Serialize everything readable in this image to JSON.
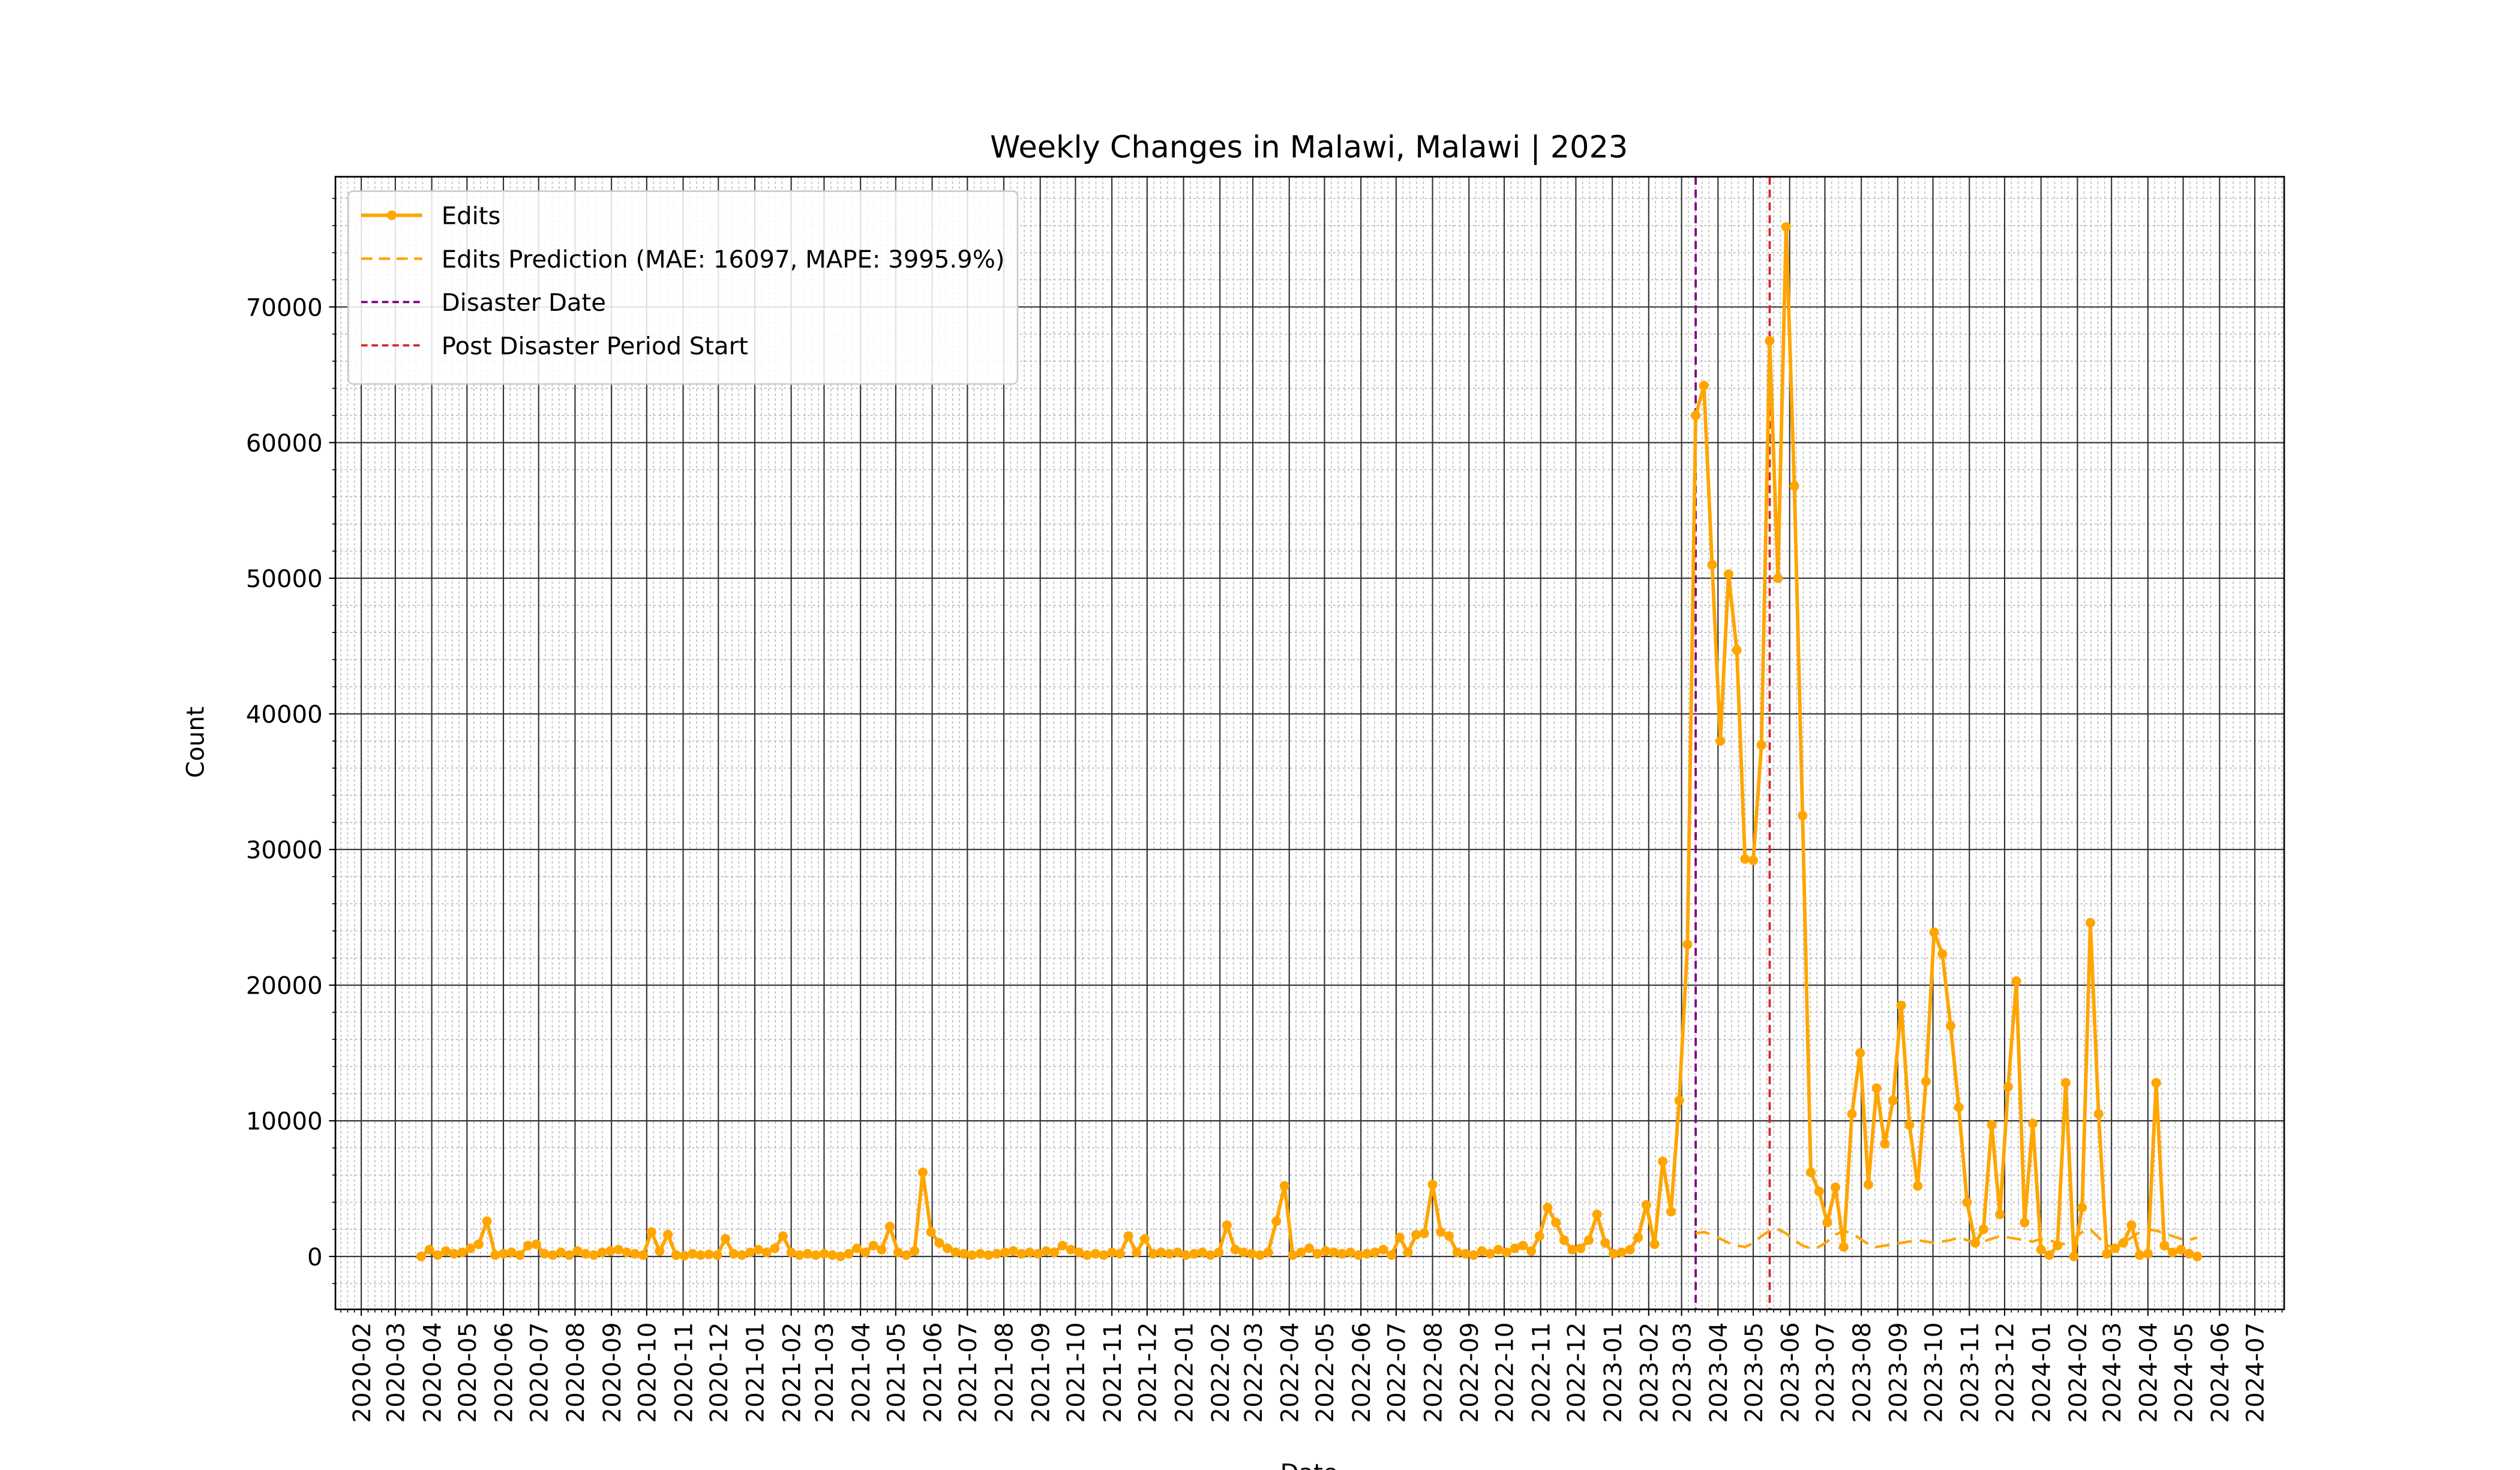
{
  "chart_data": {
    "type": "line",
    "title": "Weekly Changes in Malawi, Malawi | 2023",
    "xlabel": "Date",
    "ylabel": "Count",
    "x": [
      "2020-03-23",
      "2020-03-30",
      "2020-04-06",
      "2020-04-13",
      "2020-04-20",
      "2020-04-27",
      "2020-05-04",
      "2020-05-11",
      "2020-05-18",
      "2020-05-25",
      "2020-06-01",
      "2020-06-08",
      "2020-06-15",
      "2020-06-22",
      "2020-06-29",
      "2020-07-06",
      "2020-07-13",
      "2020-07-20",
      "2020-07-27",
      "2020-08-03",
      "2020-08-10",
      "2020-08-17",
      "2020-08-24",
      "2020-08-31",
      "2020-09-07",
      "2020-09-14",
      "2020-09-21",
      "2020-09-28",
      "2020-10-05",
      "2020-10-12",
      "2020-10-19",
      "2020-10-26",
      "2020-11-02",
      "2020-11-09",
      "2020-11-16",
      "2020-11-23",
      "2020-11-30",
      "2020-12-07",
      "2020-12-14",
      "2020-12-21",
      "2020-12-28",
      "2021-01-04",
      "2021-01-11",
      "2021-01-18",
      "2021-01-25",
      "2021-02-01",
      "2021-02-08",
      "2021-02-15",
      "2021-02-22",
      "2021-03-01",
      "2021-03-08",
      "2021-03-15",
      "2021-03-22",
      "2021-03-29",
      "2021-04-05",
      "2021-04-12",
      "2021-04-19",
      "2021-04-26",
      "2021-05-03",
      "2021-05-10",
      "2021-05-17",
      "2021-05-24",
      "2021-05-31",
      "2021-06-07",
      "2021-06-14",
      "2021-06-21",
      "2021-06-28",
      "2021-07-05",
      "2021-07-12",
      "2021-07-19",
      "2021-07-26",
      "2021-08-02",
      "2021-08-09",
      "2021-08-16",
      "2021-08-23",
      "2021-08-30",
      "2021-09-06",
      "2021-09-13",
      "2021-09-20",
      "2021-09-27",
      "2021-10-04",
      "2021-10-11",
      "2021-10-18",
      "2021-10-25",
      "2021-11-01",
      "2021-11-08",
      "2021-11-15",
      "2021-11-22",
      "2021-11-29",
      "2021-12-06",
      "2021-12-13",
      "2021-12-20",
      "2021-12-27",
      "2022-01-03",
      "2022-01-10",
      "2022-01-17",
      "2022-01-24",
      "2022-01-31",
      "2022-02-07",
      "2022-02-14",
      "2022-02-21",
      "2022-02-28",
      "2022-03-07",
      "2022-03-14",
      "2022-03-21",
      "2022-03-28",
      "2022-04-04",
      "2022-04-11",
      "2022-04-18",
      "2022-04-25",
      "2022-05-02",
      "2022-05-09",
      "2022-05-16",
      "2022-05-23",
      "2022-05-30",
      "2022-06-06",
      "2022-06-13",
      "2022-06-20",
      "2022-06-27",
      "2022-07-04",
      "2022-07-11",
      "2022-07-18",
      "2022-07-25",
      "2022-08-01",
      "2022-08-08",
      "2022-08-15",
      "2022-08-22",
      "2022-08-29",
      "2022-09-05",
      "2022-09-12",
      "2022-09-19",
      "2022-09-26",
      "2022-10-03",
      "2022-10-10",
      "2022-10-17",
      "2022-10-24",
      "2022-10-31",
      "2022-11-07",
      "2022-11-14",
      "2022-11-21",
      "2022-11-28",
      "2022-12-05",
      "2022-12-12",
      "2022-12-19",
      "2022-12-26",
      "2023-01-02",
      "2023-01-09",
      "2023-01-16",
      "2023-01-23",
      "2023-01-30",
      "2023-02-06",
      "2023-02-13",
      "2023-02-20",
      "2023-02-27",
      "2023-03-06",
      "2023-03-13",
      "2023-03-20",
      "2023-03-27",
      "2023-04-03",
      "2023-04-10",
      "2023-04-17",
      "2023-04-24",
      "2023-05-01",
      "2023-05-08",
      "2023-05-15",
      "2023-05-22",
      "2023-05-29",
      "2023-06-05",
      "2023-06-12",
      "2023-06-19",
      "2023-06-26",
      "2023-07-03",
      "2023-07-10",
      "2023-07-17",
      "2023-07-24",
      "2023-07-31",
      "2023-08-07",
      "2023-08-14",
      "2023-08-21",
      "2023-08-28",
      "2023-09-04",
      "2023-09-11",
      "2023-09-18",
      "2023-09-25",
      "2023-10-02",
      "2023-10-09",
      "2023-10-16",
      "2023-10-23",
      "2023-10-30",
      "2023-11-06",
      "2023-11-13",
      "2023-11-20",
      "2023-11-27",
      "2023-12-04",
      "2023-12-11",
      "2023-12-18",
      "2023-12-25",
      "2024-01-01",
      "2024-01-08",
      "2024-01-15",
      "2024-01-22",
      "2024-01-29",
      "2024-02-05",
      "2024-02-12",
      "2024-02-19",
      "2024-02-26",
      "2024-03-04",
      "2024-03-11",
      "2024-03-18",
      "2024-03-25",
      "2024-04-01",
      "2024-04-08",
      "2024-04-15",
      "2024-04-22",
      "2024-04-29",
      "2024-05-06",
      "2024-05-13"
    ],
    "series": [
      {
        "name": "Edits",
        "color": "#ffa500",
        "style": "solid",
        "marker": true,
        "values": [
          0,
          500,
          100,
          400,
          200,
          300,
          600,
          900,
          2600,
          100,
          200,
          300,
          100,
          800,
          900,
          200,
          100,
          300,
          100,
          400,
          200,
          100,
          300,
          400,
          500,
          300,
          200,
          100,
          1800,
          400,
          1600,
          100,
          50,
          200,
          100,
          150,
          100,
          1300,
          200,
          100,
          300,
          500,
          300,
          600,
          1500,
          300,
          100,
          200,
          100,
          200,
          100,
          0,
          200,
          600,
          300,
          800,
          500,
          2200,
          300,
          100,
          400,
          6200,
          1800,
          1000,
          600,
          300,
          200,
          100,
          200,
          100,
          200,
          300,
          400,
          200,
          300,
          200,
          400,
          300,
          800,
          500,
          300,
          100,
          200,
          100,
          300,
          200,
          1500,
          300,
          1300,
          200,
          300,
          200,
          300,
          100,
          200,
          300,
          100,
          300,
          2300,
          500,
          300,
          200,
          100,
          300,
          2600,
          5200,
          100,
          300,
          600,
          200,
          400,
          300,
          200,
          300,
          100,
          200,
          300,
          500,
          100,
          1400,
          300,
          1600,
          1700,
          5300,
          1800,
          1500,
          300,
          200,
          100,
          400,
          200,
          500,
          300,
          600,
          800,
          400,
          1500,
          3600,
          2500,
          1200,
          500,
          600,
          1200,
          3100,
          1000,
          200,
          300,
          500,
          1400,
          3800,
          900,
          7000,
          3300,
          11500,
          23000,
          62000,
          64200,
          51000,
          38000,
          50300,
          44700,
          29300,
          29200,
          37700,
          67500,
          50000,
          75900,
          56800,
          32500,
          6200,
          4800,
          2500,
          5100,
          700,
          10500,
          15000,
          5300,
          12400,
          8300,
          11500,
          18500,
          9700,
          5200,
          12900,
          23900,
          22300,
          17000,
          11000,
          4000,
          1000,
          2000,
          9700,
          3100,
          12500,
          20300,
          2500,
          9800,
          500,
          100,
          800,
          12800,
          0,
          3600,
          24600,
          10500,
          200,
          600,
          1000,
          2300,
          100,
          200,
          12800,
          800,
          300,
          500,
          200,
          0
        ]
      },
      {
        "name": "Edits Prediction (MAE: 16097, MAPE: 3995.9%)",
        "color": "#ffa500",
        "style": "dashed",
        "marker": false,
        "values": [
          null,
          null,
          null,
          null,
          null,
          null,
          null,
          null,
          null,
          null,
          null,
          null,
          null,
          null,
          null,
          null,
          null,
          null,
          null,
          null,
          null,
          null,
          null,
          null,
          null,
          null,
          null,
          null,
          null,
          null,
          null,
          null,
          null,
          null,
          null,
          null,
          null,
          null,
          null,
          null,
          null,
          null,
          null,
          null,
          null,
          null,
          null,
          null,
          null,
          null,
          null,
          null,
          null,
          null,
          null,
          null,
          null,
          null,
          null,
          null,
          null,
          null,
          null,
          null,
          null,
          null,
          null,
          null,
          null,
          null,
          null,
          null,
          null,
          null,
          null,
          null,
          null,
          null,
          null,
          null,
          null,
          null,
          null,
          null,
          null,
          null,
          null,
          null,
          null,
          null,
          null,
          null,
          null,
          null,
          null,
          null,
          null,
          null,
          null,
          null,
          null,
          null,
          null,
          null,
          null,
          null,
          null,
          null,
          null,
          null,
          null,
          null,
          null,
          null,
          null,
          null,
          null,
          null,
          null,
          null,
          null,
          null,
          null,
          null,
          null,
          null,
          null,
          null,
          null,
          null,
          null,
          null,
          null,
          null,
          null,
          null,
          null,
          null,
          null,
          null,
          null,
          null,
          null,
          null,
          null,
          null,
          null,
          null,
          null,
          null,
          null,
          null,
          null,
          null,
          null,
          1700,
          1800,
          1600,
          1300,
          1000,
          800,
          700,
          1000,
          1500,
          1900,
          2000,
          1700,
          1200,
          800,
          600,
          700,
          1100,
          1600,
          1900,
          1700,
          1300,
          900,
          700,
          800,
          900,
          1000,
          1100,
          1200,
          1100,
          1000,
          1100,
          1200,
          1400,
          1200,
          1000,
          1100,
          1300,
          1500,
          1400,
          1300,
          1200,
          1100,
          1300,
          1200,
          1000,
          900,
          1300,
          1800,
          2000,
          1400,
          800,
          700,
          1000,
          1400,
          1800,
          2000,
          1900,
          1700,
          1500,
          1300,
          1200,
          1400
        ]
      }
    ],
    "vlines": [
      {
        "name": "Disaster Date",
        "color": "#800080",
        "x": "2023-03-13"
      },
      {
        "name": "Post Disaster Period Start",
        "color": "#d62728",
        "x": "2023-05-15"
      }
    ],
    "xlim": [
      "2020-01-10",
      "2024-07-26"
    ],
    "xticks": [
      "2020-02",
      "2020-03",
      "2020-04",
      "2020-05",
      "2020-06",
      "2020-07",
      "2020-08",
      "2020-09",
      "2020-10",
      "2020-11",
      "2020-12",
      "2021-01",
      "2021-02",
      "2021-03",
      "2021-04",
      "2021-05",
      "2021-06",
      "2021-07",
      "2021-08",
      "2021-09",
      "2021-10",
      "2021-11",
      "2021-12",
      "2022-01",
      "2022-02",
      "2022-03",
      "2022-04",
      "2022-05",
      "2022-06",
      "2022-07",
      "2022-08",
      "2022-09",
      "2022-10",
      "2022-11",
      "2022-12",
      "2023-01",
      "2023-02",
      "2023-03",
      "2023-04",
      "2023-05",
      "2023-06",
      "2023-07",
      "2023-08",
      "2023-09",
      "2023-10",
      "2023-11",
      "2023-12",
      "2024-01",
      "2024-02",
      "2024-03",
      "2024-04",
      "2024-05",
      "2024-06",
      "2024-07"
    ],
    "ylim": [
      -3900,
      79600
    ],
    "yticks": [
      0,
      10000,
      20000,
      30000,
      40000,
      50000,
      60000,
      70000
    ],
    "grid": true,
    "minor_grid": true,
    "legend": "upper left"
  }
}
